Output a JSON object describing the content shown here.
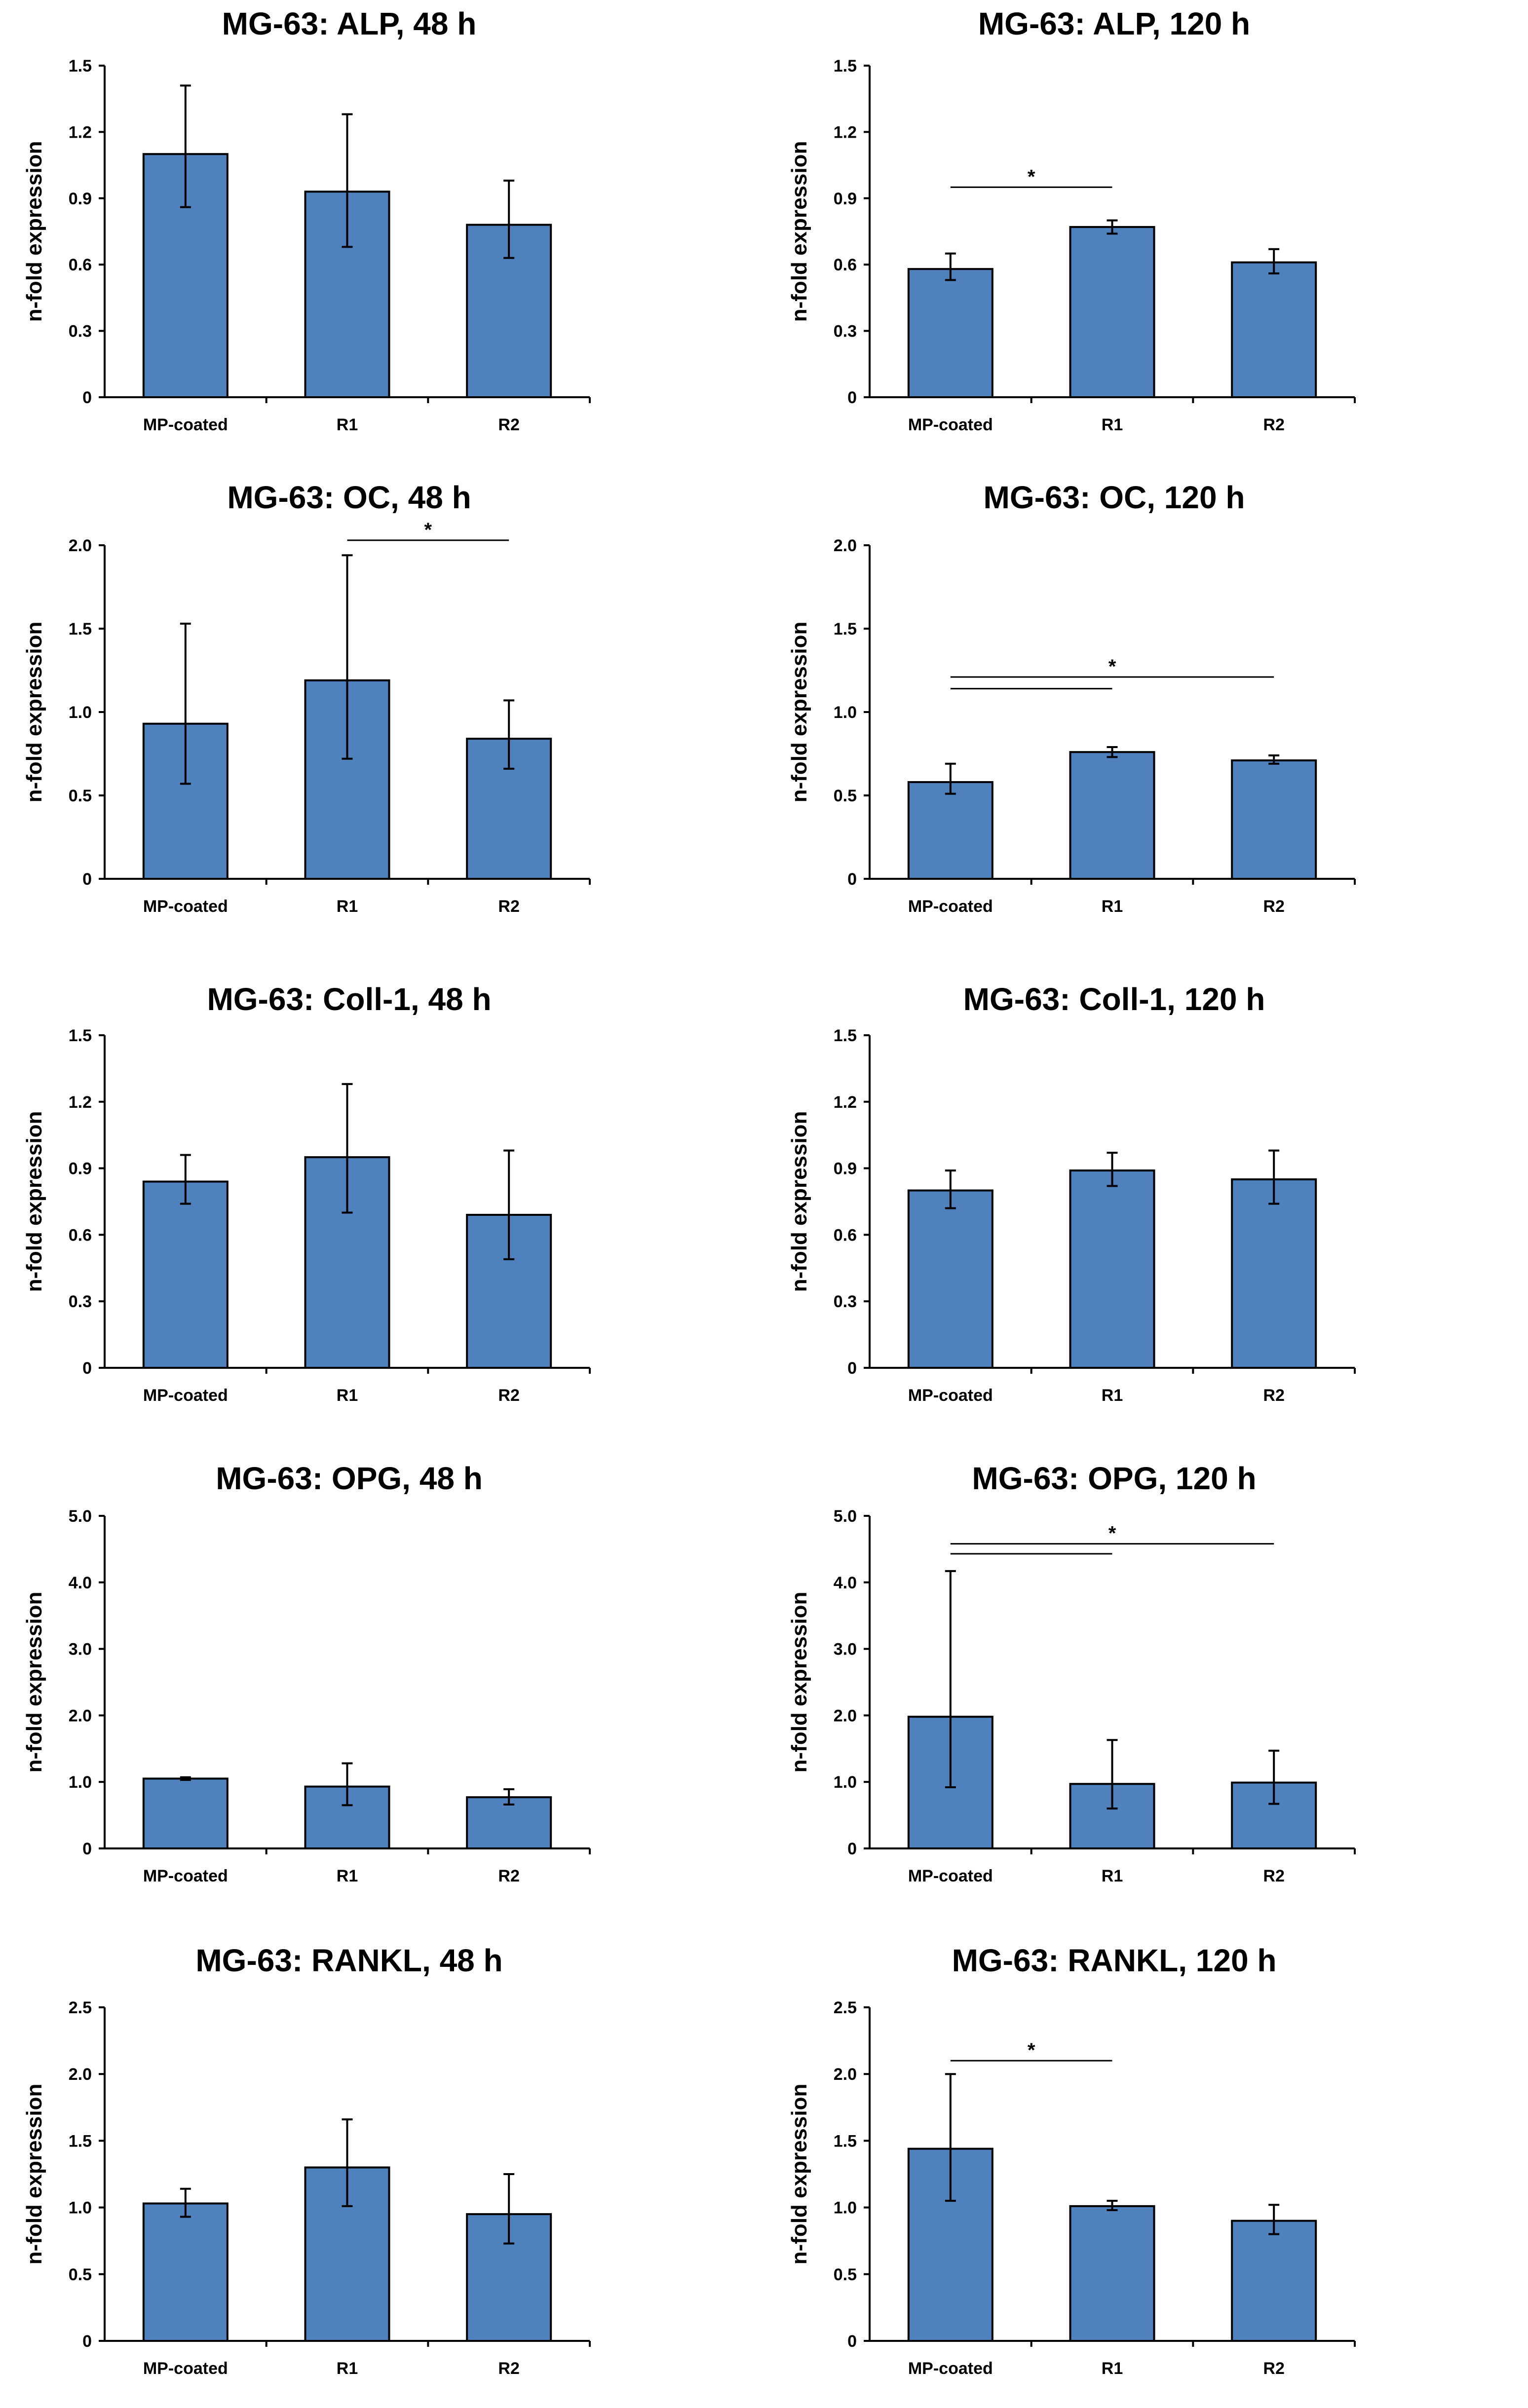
{
  "chart_data": [
    {
      "type": "bar",
      "title": "MG-63: ALP, 48 h",
      "ylabel": "n-fold expression",
      "categories": [
        "MP-coated",
        "R1",
        "R2"
      ],
      "ylim": [
        0,
        1.5
      ],
      "yticks": [
        "0",
        "0.3",
        "0.6",
        "0.9",
        "1.2",
        "1.5"
      ],
      "values": [
        1.1,
        0.93,
        0.78
      ],
      "err_low": [
        0.86,
        0.68,
        0.63
      ],
      "err_high": [
        1.41,
        1.28,
        0.98
      ],
      "significance": []
    },
    {
      "type": "bar",
      "title": "MG-63: ALP, 120 h",
      "ylabel": "n-fold expression",
      "categories": [
        "MP-coated",
        "R1",
        "R2"
      ],
      "ylim": [
        0,
        1.5
      ],
      "yticks": [
        "0",
        "0.3",
        "0.6",
        "0.9",
        "1.2",
        "1.5"
      ],
      "values": [
        0.58,
        0.77,
        0.61
      ],
      "err_low": [
        0.53,
        0.74,
        0.56
      ],
      "err_high": [
        0.65,
        0.8,
        0.67
      ],
      "significance": [
        {
          "from": 0,
          "to": 1,
          "y": 0.95,
          "label": "*"
        }
      ]
    },
    {
      "type": "bar",
      "title": "MG-63: OC, 48 h",
      "ylabel": "n-fold expression",
      "categories": [
        "MP-coated",
        "R1",
        "R2"
      ],
      "ylim": [
        0,
        2.0
      ],
      "yticks": [
        "0",
        "0.5",
        "1.0",
        "1.5",
        "2.0"
      ],
      "values": [
        0.93,
        1.19,
        0.84
      ],
      "err_low": [
        0.57,
        0.72,
        0.66
      ],
      "err_high": [
        1.53,
        1.94,
        1.07
      ],
      "significance": [
        {
          "from": 1,
          "to": 2,
          "y": 2.03,
          "label": "*"
        }
      ]
    },
    {
      "type": "bar",
      "title": "MG-63: OC, 120 h",
      "ylabel": "n-fold expression",
      "categories": [
        "MP-coated",
        "R1",
        "R2"
      ],
      "ylim": [
        0,
        2.0
      ],
      "yticks": [
        "0",
        "0.5",
        "1.0",
        "1.5",
        "2.0"
      ],
      "values": [
        0.58,
        0.76,
        0.71
      ],
      "err_low": [
        0.51,
        0.73,
        0.69
      ],
      "err_high": [
        0.69,
        0.79,
        0.74
      ],
      "significance": [
        {
          "from": 0,
          "to": 1,
          "y": 1.14,
          "label": ""
        },
        {
          "from": 0,
          "to": 2,
          "y": 1.21,
          "label": "*"
        }
      ]
    },
    {
      "type": "bar",
      "title": "MG-63: Coll-1, 48 h",
      "ylabel": "n-fold expression",
      "categories": [
        "MP-coated",
        "R1",
        "R2"
      ],
      "ylim": [
        0,
        1.5
      ],
      "yticks": [
        "0",
        "0.3",
        "0.6",
        "0.9",
        "1.2",
        "1.5"
      ],
      "values": [
        0.84,
        0.95,
        0.69
      ],
      "err_low": [
        0.74,
        0.7,
        0.49
      ],
      "err_high": [
        0.96,
        1.28,
        0.98
      ],
      "significance": []
    },
    {
      "type": "bar",
      "title": "MG-63: Coll-1, 120 h",
      "ylabel": "n-fold expression",
      "categories": [
        "MP-coated",
        "R1",
        "R2"
      ],
      "ylim": [
        0,
        1.5
      ],
      "yticks": [
        "0",
        "0.3",
        "0.6",
        "0.9",
        "1.2",
        "1.5"
      ],
      "values": [
        0.8,
        0.89,
        0.85
      ],
      "err_low": [
        0.72,
        0.82,
        0.74
      ],
      "err_high": [
        0.89,
        0.97,
        0.98
      ],
      "significance": []
    },
    {
      "type": "bar",
      "title": "MG-63: OPG, 48 h",
      "ylabel": "n-fold expression",
      "categories": [
        "MP-coated",
        "R1",
        "R2"
      ],
      "ylim": [
        0,
        5.0
      ],
      "yticks": [
        "0",
        "1.0",
        "2.0",
        "3.0",
        "4.0",
        "5.0"
      ],
      "values": [
        1.05,
        0.93,
        0.77
      ],
      "err_low": [
        1.03,
        0.65,
        0.66
      ],
      "err_high": [
        1.07,
        1.28,
        0.89
      ],
      "significance": []
    },
    {
      "type": "bar",
      "title": "MG-63: OPG, 120 h",
      "ylabel": "n-fold expression",
      "categories": [
        "MP-coated",
        "R1",
        "R2"
      ],
      "ylim": [
        0,
        5.0
      ],
      "yticks": [
        "0",
        "1.0",
        "2.0",
        "3.0",
        "4.0",
        "5.0"
      ],
      "values": [
        1.98,
        0.97,
        0.99
      ],
      "err_low": [
        0.92,
        0.6,
        0.67
      ],
      "err_high": [
        4.17,
        1.63,
        1.47
      ],
      "significance": [
        {
          "from": 0,
          "to": 1,
          "y": 4.43,
          "label": ""
        },
        {
          "from": 0,
          "to": 2,
          "y": 4.58,
          "label": "*"
        }
      ]
    },
    {
      "type": "bar",
      "title": "MG-63: RANKL, 48 h",
      "ylabel": "n-fold expression",
      "categories": [
        "MP-coated",
        "R1",
        "R2"
      ],
      "ylim": [
        0,
        2.5
      ],
      "yticks": [
        "0",
        "0.5",
        "1.0",
        "1.5",
        "2.0",
        "2.5"
      ],
      "values": [
        1.03,
        1.3,
        0.95
      ],
      "err_low": [
        0.93,
        1.01,
        0.73
      ],
      "err_high": [
        1.14,
        1.66,
        1.25
      ],
      "significance": []
    },
    {
      "type": "bar",
      "title": "MG-63: RANKL, 120 h",
      "ylabel": "n-fold expression",
      "categories": [
        "MP-coated",
        "R1",
        "R2"
      ],
      "ylim": [
        0,
        2.5
      ],
      "yticks": [
        "0",
        "0.5",
        "1.0",
        "1.5",
        "2.0",
        "2.5"
      ],
      "values": [
        1.44,
        1.01,
        0.9
      ],
      "err_low": [
        1.05,
        0.98,
        0.8
      ],
      "err_high": [
        2.0,
        1.05,
        1.02
      ],
      "significance": [
        {
          "from": 0,
          "to": 1,
          "y": 2.1,
          "label": "*"
        }
      ]
    }
  ]
}
